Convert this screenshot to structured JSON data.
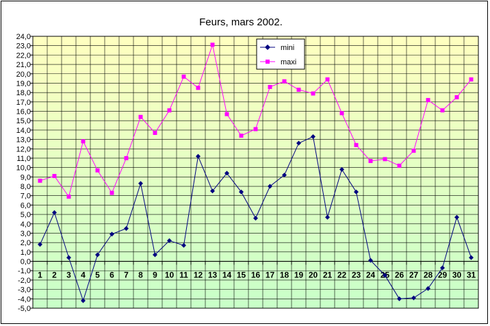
{
  "chart_data": {
    "type": "line",
    "title": "Feurs, mars 2002.",
    "xlabel": "",
    "ylabel": "",
    "categories": [
      "1",
      "2",
      "3",
      "4",
      "5",
      "6",
      "7",
      "8",
      "9",
      "10",
      "11",
      "12",
      "13",
      "14",
      "15",
      "16",
      "17",
      "18",
      "19",
      "20",
      "21",
      "22",
      "23",
      "24",
      "25",
      "26",
      "27",
      "28",
      "29",
      "30",
      "31"
    ],
    "ylim": [
      -5,
      24
    ],
    "ytick_step": 1,
    "grid": true,
    "legend_position": "top-center",
    "series": [
      {
        "name": "mini",
        "color": "#000080",
        "marker": "diamond",
        "values": [
          1.8,
          5.2,
          0.4,
          -4.2,
          0.7,
          2.9,
          3.5,
          8.3,
          0.7,
          2.2,
          1.7,
          11.2,
          7.5,
          9.4,
          7.4,
          4.6,
          8.0,
          9.2,
          12.6,
          13.3,
          4.7,
          9.8,
          7.4,
          0.1,
          -1.5,
          -4.0,
          -3.9,
          -2.9,
          -0.7,
          4.7,
          0.4
        ]
      },
      {
        "name": "maxi",
        "color": "#ff00ff",
        "marker": "square",
        "values": [
          8.6,
          9.1,
          6.9,
          12.8,
          9.7,
          7.3,
          11.0,
          15.4,
          13.7,
          16.1,
          19.7,
          18.5,
          23.1,
          15.7,
          13.4,
          14.1,
          18.6,
          19.2,
          18.3,
          17.9,
          19.4,
          15.8,
          12.4,
          10.7,
          10.9,
          10.2,
          11.8,
          17.2,
          16.1,
          17.5,
          19.4
        ]
      }
    ]
  }
}
